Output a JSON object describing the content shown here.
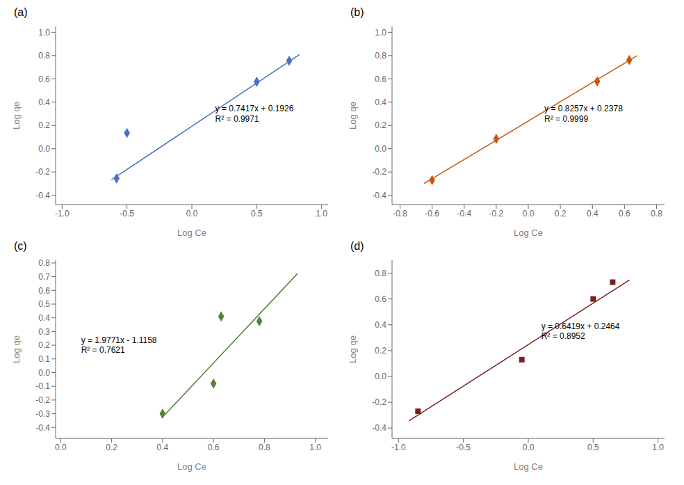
{
  "chart_data": [
    {
      "type": "scatter",
      "title": "(a)",
      "x_label": "Log Ce",
      "y_label": "Log qe",
      "xlim": [
        -1.05,
        1.05
      ],
      "ylim": [
        -0.48,
        1.05
      ],
      "xticks": [
        {
          "value": -1.0,
          "label": "-1.0"
        },
        -0.5,
        {
          "value": 0,
          "label": "0.0"
        },
        0.5,
        {
          "value": 1.0,
          "label": "1.0"
        }
      ],
      "yticks": [
        -0.4,
        -0.2,
        {
          "value": 0,
          "label": "0.0"
        },
        0.2,
        0.4,
        0.6,
        0.8,
        {
          "value": 1.0,
          "label": "1.0"
        }
      ],
      "grid": false,
      "series": [
        {
          "type": "line",
          "color": "#4472C4",
          "x": [
            -0.62,
            0.83
          ],
          "values": [
            -0.267254,
            0.808211
          ]
        },
        {
          "type": "scatter",
          "color": "#4472C4",
          "marker": "diamond",
          "x": [
            -0.58,
            -0.5,
            0.5,
            0.75
          ],
          "values": [
            -0.255,
            0.135,
            0.575,
            0.755
          ]
        }
      ],
      "annotations": [
        {
          "text": "y = 0.7417x + 0.1926\nR² = 0.9971",
          "x": 0.18,
          "y": 0.3
        }
      ]
    },
    {
      "type": "scatter",
      "title": "(b)",
      "x_label": "Log Ce",
      "y_label": "Log qe",
      "xlim": [
        -0.85,
        0.85
      ],
      "ylim": [
        -0.48,
        1.05
      ],
      "xticks": [
        -0.8,
        -0.6,
        -0.4,
        -0.2,
        {
          "value": 0,
          "label": "0.0"
        },
        0.2,
        0.4,
        0.6,
        0.8
      ],
      "yticks": [
        -0.4,
        -0.2,
        {
          "value": 0,
          "label": "0.0"
        },
        0.2,
        0.4,
        0.6,
        0.8,
        {
          "value": 1.0,
          "label": "1.0"
        }
      ],
      "grid": false,
      "series": [
        {
          "type": "line",
          "color": "#C55A11",
          "x": [
            -0.65,
            0.68
          ],
          "values": [
            -0.298905,
            0.799276
          ]
        },
        {
          "type": "scatter",
          "color": "#C55A11",
          "marker": "diamond",
          "x": [
            -0.6,
            -0.2,
            0.43,
            0.63
          ],
          "values": [
            -0.27,
            0.085,
            0.578,
            0.762
          ]
        }
      ],
      "annotations": [
        {
          "text": "y = 0.8257x + 0.2378\nR² = 0.9999",
          "x": 0.1,
          "y": 0.3
        }
      ]
    },
    {
      "type": "scatter",
      "title": "(c)",
      "x_label": "Log Ce",
      "y_label": "Log qe",
      "xlim": [
        -0.02,
        1.05
      ],
      "ylim": [
        -0.48,
        0.82
      ],
      "xticks": [
        {
          "value": 0,
          "label": "0.0"
        },
        0.2,
        0.4,
        0.6,
        0.8,
        {
          "value": 1.0,
          "label": "1.0"
        }
      ],
      "yticks": [
        -0.4,
        -0.3,
        -0.2,
        -0.1,
        {
          "value": 0,
          "label": "0.0"
        },
        0.1,
        0.2,
        0.3,
        0.4,
        0.5,
        0.6,
        0.7,
        0.8
      ],
      "grid": false,
      "series": [
        {
          "type": "line",
          "color": "#548235",
          "x": [
            0.41,
            0.93
          ],
          "values": [
            -0.305189,
            0.722903
          ]
        },
        {
          "type": "scatter",
          "color": "#548235",
          "marker": "diamond",
          "x": [
            0.4,
            0.6,
            0.63,
            0.78
          ],
          "values": [
            -0.3,
            -0.08,
            0.41,
            0.375
          ]
        }
      ],
      "annotations": [
        {
          "text": "y = 1.9771x - 1.1158\nR² = 0.7621",
          "x": 0.08,
          "y": 0.2
        }
      ]
    },
    {
      "type": "scatter",
      "title": "(d)",
      "x_label": "Log Ce",
      "y_label": "Log qe",
      "xlim": [
        -1.05,
        1.05
      ],
      "ylim": [
        -0.48,
        0.9
      ],
      "xticks": [
        {
          "value": -1.0,
          "label": "-1.0"
        },
        -0.5,
        {
          "value": 0,
          "label": "0.0"
        },
        0.5,
        {
          "value": 1.0,
          "label": "1.0"
        }
      ],
      "yticks": [
        -0.4,
        -0.2,
        {
          "value": 0,
          "label": "0.0"
        },
        0.2,
        0.4,
        0.6,
        0.8
      ],
      "grid": false,
      "series": [
        {
          "type": "line",
          "color": "#7B2020",
          "x": [
            -0.92,
            0.78
          ],
          "values": [
            -0.344148,
            0.747082
          ]
        },
        {
          "type": "scatter",
          "color": "#7B2020",
          "marker": "square",
          "x": [
            -0.85,
            -0.05,
            0.5,
            0.65
          ],
          "values": [
            -0.27,
            0.13,
            0.6,
            0.73
          ]
        }
      ],
      "annotations": [
        {
          "text": "y = 0.6419x + 0.2464\nR² = 0.8952",
          "x": 0.1,
          "y": 0.35
        }
      ]
    }
  ]
}
